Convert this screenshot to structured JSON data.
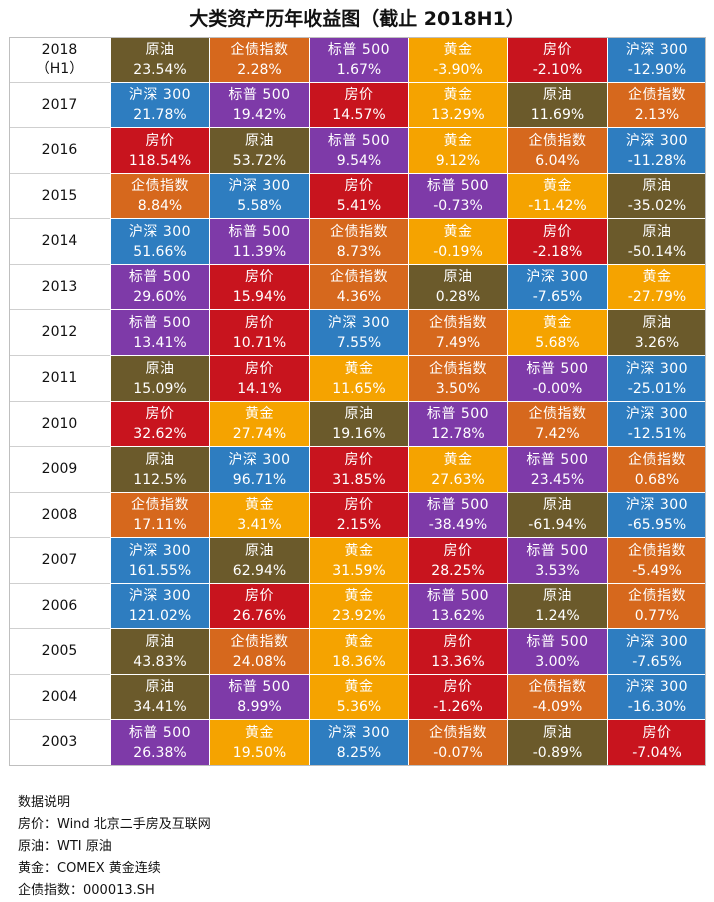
{
  "title": "大类资产历年收益图（截止 2018H1）",
  "colors": {
    "原油": "#6b5a2b",
    "企债指数": "#d6681d",
    "标普 500": "#7e3aa8",
    "黄金": "#f5a300",
    "房价": "#c8141e",
    "沪深 300": "#2e7dc0"
  },
  "chart_data": {
    "type": "table",
    "title": "大类资产历年收益图（截止 2018H1）",
    "rows": [
      {
        "year": "2018",
        "year_sub": "（H1）",
        "cells": [
          {
            "asset": "原油",
            "ret": "23.54%"
          },
          {
            "asset": "企债指数",
            "ret": "2.28%"
          },
          {
            "asset": "标普 500",
            "ret": "1.67%"
          },
          {
            "asset": "黄金",
            "ret": "-3.90%"
          },
          {
            "asset": "房价",
            "ret": "-2.10%"
          },
          {
            "asset": "沪深 300",
            "ret": "-12.90%"
          }
        ]
      },
      {
        "year": "2017",
        "year_sub": "",
        "cells": [
          {
            "asset": "沪深 300",
            "ret": "21.78%"
          },
          {
            "asset": "标普 500",
            "ret": "19.42%"
          },
          {
            "asset": "房价",
            "ret": "14.57%"
          },
          {
            "asset": "黄金",
            "ret": "13.29%"
          },
          {
            "asset": "原油",
            "ret": "11.69%"
          },
          {
            "asset": "企债指数",
            "ret": "2.13%"
          }
        ]
      },
      {
        "year": "2016",
        "year_sub": "",
        "cells": [
          {
            "asset": "房价",
            "ret": "118.54%"
          },
          {
            "asset": "原油",
            "ret": "53.72%"
          },
          {
            "asset": "标普 500",
            "ret": "9.54%"
          },
          {
            "asset": "黄金",
            "ret": "9.12%"
          },
          {
            "asset": "企债指数",
            "ret": "6.04%"
          },
          {
            "asset": "沪深 300",
            "ret": "-11.28%"
          }
        ]
      },
      {
        "year": "2015",
        "year_sub": "",
        "cells": [
          {
            "asset": "企债指数",
            "ret": "8.84%"
          },
          {
            "asset": "沪深 300",
            "ret": "5.58%"
          },
          {
            "asset": "房价",
            "ret": "5.41%"
          },
          {
            "asset": "标普 500",
            "ret": "-0.73%"
          },
          {
            "asset": "黄金",
            "ret": "-11.42%"
          },
          {
            "asset": "原油",
            "ret": "-35.02%"
          }
        ]
      },
      {
        "year": "2014",
        "year_sub": "",
        "cells": [
          {
            "asset": "沪深 300",
            "ret": "51.66%"
          },
          {
            "asset": "标普 500",
            "ret": "11.39%"
          },
          {
            "asset": "企债指数",
            "ret": "8.73%"
          },
          {
            "asset": "黄金",
            "ret": "-0.19%"
          },
          {
            "asset": "房价",
            "ret": "-2.18%"
          },
          {
            "asset": "原油",
            "ret": "-50.14%"
          }
        ]
      },
      {
        "year": "2013",
        "year_sub": "",
        "cells": [
          {
            "asset": "标普 500",
            "ret": "29.60%"
          },
          {
            "asset": "房价",
            "ret": "15.94%"
          },
          {
            "asset": "企债指数",
            "ret": "4.36%"
          },
          {
            "asset": "原油",
            "ret": "0.28%"
          },
          {
            "asset": "沪深 300",
            "ret": "-7.65%"
          },
          {
            "asset": "黄金",
            "ret": "-27.79%"
          }
        ]
      },
      {
        "year": "2012",
        "year_sub": "",
        "cells": [
          {
            "asset": "标普 500",
            "ret": "13.41%"
          },
          {
            "asset": "房价",
            "ret": "10.71%"
          },
          {
            "asset": "沪深 300",
            "ret": "7.55%"
          },
          {
            "asset": "企债指数",
            "ret": "7.49%"
          },
          {
            "asset": "黄金",
            "ret": "5.68%"
          },
          {
            "asset": "原油",
            "ret": "3.26%"
          }
        ]
      },
      {
        "year": "2011",
        "year_sub": "",
        "cells": [
          {
            "asset": "原油",
            "ret": "15.09%"
          },
          {
            "asset": "房价",
            "ret": "14.1%"
          },
          {
            "asset": "黄金",
            "ret": "11.65%"
          },
          {
            "asset": "企债指数",
            "ret": "3.50%"
          },
          {
            "asset": "标普 500",
            "ret": "-0.00%"
          },
          {
            "asset": "沪深 300",
            "ret": "-25.01%"
          }
        ]
      },
      {
        "year": "2010",
        "year_sub": "",
        "cells": [
          {
            "asset": "房价",
            "ret": "32.62%"
          },
          {
            "asset": "黄金",
            "ret": "27.74%"
          },
          {
            "asset": "原油",
            "ret": "19.16%"
          },
          {
            "asset": "标普 500",
            "ret": "12.78%"
          },
          {
            "asset": "企债指数",
            "ret": "7.42%"
          },
          {
            "asset": "沪深 300",
            "ret": "-12.51%"
          }
        ]
      },
      {
        "year": "2009",
        "year_sub": "",
        "cells": [
          {
            "asset": "原油",
            "ret": "112.5%"
          },
          {
            "asset": "沪深 300",
            "ret": "96.71%"
          },
          {
            "asset": "房价",
            "ret": "31.85%"
          },
          {
            "asset": "黄金",
            "ret": "27.63%"
          },
          {
            "asset": "标普 500",
            "ret": "23.45%"
          },
          {
            "asset": "企债指数",
            "ret": "0.68%"
          }
        ]
      },
      {
        "year": "2008",
        "year_sub": "",
        "cells": [
          {
            "asset": "企债指数",
            "ret": "17.11%"
          },
          {
            "asset": "黄金",
            "ret": "3.41%"
          },
          {
            "asset": "房价",
            "ret": "2.15%"
          },
          {
            "asset": "标普 500",
            "ret": "-38.49%"
          },
          {
            "asset": "原油",
            "ret": "-61.94%"
          },
          {
            "asset": "沪深 300",
            "ret": "-65.95%"
          }
        ]
      },
      {
        "year": "2007",
        "year_sub": "",
        "cells": [
          {
            "asset": "沪深 300",
            "ret": "161.55%"
          },
          {
            "asset": "原油",
            "ret": "62.94%"
          },
          {
            "asset": "黄金",
            "ret": "31.59%"
          },
          {
            "asset": "房价",
            "ret": "28.25%"
          },
          {
            "asset": "标普 500",
            "ret": "3.53%"
          },
          {
            "asset": "企债指数",
            "ret": "-5.49%"
          }
        ]
      },
      {
        "year": "2006",
        "year_sub": "",
        "cells": [
          {
            "asset": "沪深 300",
            "ret": "121.02%"
          },
          {
            "asset": "房价",
            "ret": "26.76%"
          },
          {
            "asset": "黄金",
            "ret": "23.92%"
          },
          {
            "asset": "标普 500",
            "ret": "13.62%"
          },
          {
            "asset": "原油",
            "ret": "1.24%"
          },
          {
            "asset": "企债指数",
            "ret": "0.77%"
          }
        ]
      },
      {
        "year": "2005",
        "year_sub": "",
        "cells": [
          {
            "asset": "原油",
            "ret": "43.83%"
          },
          {
            "asset": "企债指数",
            "ret": "24.08%"
          },
          {
            "asset": "黄金",
            "ret": "18.36%"
          },
          {
            "asset": "房价",
            "ret": "13.36%"
          },
          {
            "asset": "标普 500",
            "ret": "3.00%"
          },
          {
            "asset": "沪深 300",
            "ret": "-7.65%"
          }
        ]
      },
      {
        "year": "2004",
        "year_sub": "",
        "cells": [
          {
            "asset": "原油",
            "ret": "34.41%"
          },
          {
            "asset": "标普 500",
            "ret": "8.99%"
          },
          {
            "asset": "黄金",
            "ret": "5.36%"
          },
          {
            "asset": "房价",
            "ret": "-1.26%"
          },
          {
            "asset": "企债指数",
            "ret": "-4.09%"
          },
          {
            "asset": "沪深 300",
            "ret": "-16.30%"
          }
        ]
      },
      {
        "year": "2003",
        "year_sub": "",
        "cells": [
          {
            "asset": "标普 500",
            "ret": "26.38%"
          },
          {
            "asset": "黄金",
            "ret": "19.50%"
          },
          {
            "asset": "沪深 300",
            "ret": "8.25%"
          },
          {
            "asset": "企债指数",
            "ret": "-0.07%"
          },
          {
            "asset": "原油",
            "ret": "-0.89%"
          },
          {
            "asset": "房价",
            "ret": "-7.04%"
          }
        ]
      }
    ]
  },
  "notes": {
    "heading": "数据说明",
    "lines": [
      "房价：Wind 北京二手房及互联网",
      "原油：WTI 原油",
      "黄金：COMEX 黄金连续",
      "企债指数：000013.SH"
    ]
  }
}
